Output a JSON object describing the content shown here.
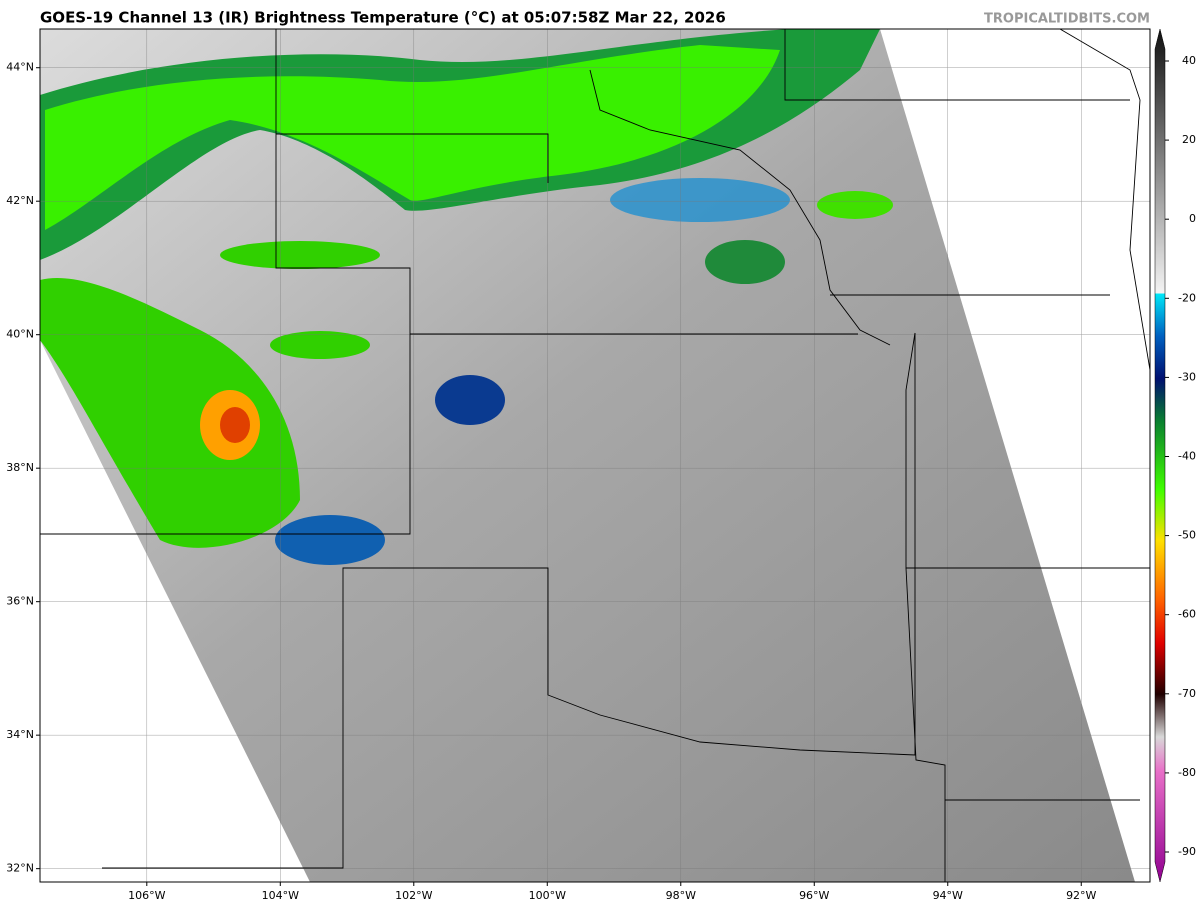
{
  "title": "GOES-19 Channel 13 (IR) Brightness Temperature (°C) at 05:07:58Z Mar 22, 2026",
  "watermark": "TROPICALTIDBITS.COM",
  "map": {
    "xlim": [
      -107.6,
      -90.97
    ],
    "ylim": [
      31.8,
      44.58
    ],
    "xticks": [
      {
        "value": -106,
        "label": "106°W"
      },
      {
        "value": -104,
        "label": "104°W"
      },
      {
        "value": -102,
        "label": "102°W"
      },
      {
        "value": -100,
        "label": "100°W"
      },
      {
        "value": -98,
        "label": "98°W"
      },
      {
        "value": -96,
        "label": "96°W"
      },
      {
        "value": -94,
        "label": "94°W"
      },
      {
        "value": -92,
        "label": "92°W"
      }
    ],
    "yticks": [
      {
        "value": 44,
        "label": "44°N"
      },
      {
        "value": 42,
        "label": "42°N"
      },
      {
        "value": 40,
        "label": "40°N"
      },
      {
        "value": 38,
        "label": "38°N"
      },
      {
        "value": 36,
        "label": "36°N"
      },
      {
        "value": 34,
        "label": "34°N"
      },
      {
        "value": 32,
        "label": "32°N"
      }
    ]
  },
  "colorbar": {
    "ticks": [
      40,
      20,
      0,
      -20,
      -30,
      -40,
      -50,
      -60,
      -70,
      -80,
      -90
    ]
  }
}
